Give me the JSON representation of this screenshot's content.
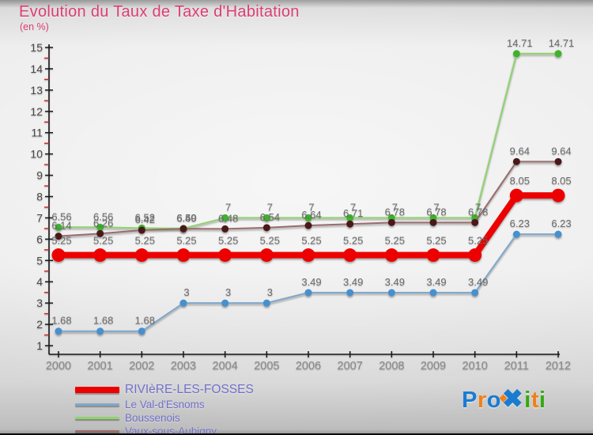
{
  "chart_data": {
    "type": "line",
    "title": "Evolution du Taux de Taxe d'Habitation",
    "subtitle": "(en %)",
    "x": [
      2000,
      2001,
      2002,
      2003,
      2004,
      2005,
      2006,
      2007,
      2008,
      2009,
      2010,
      2011,
      2012
    ],
    "xlabel": "",
    "ylabel": "",
    "ylim": [
      1,
      15
    ],
    "y_major_step": 1,
    "y_minor_step": 0.5,
    "grid": false,
    "legend_position": "bottom-left",
    "series": [
      {
        "name": "RIVIèRE-LES-FOSSES",
        "color": "#ec0000",
        "marker_color": "#ec0000",
        "line_width": 8,
        "marker_radius": 8.5,
        "label_offset": 14,
        "draw_order": 4,
        "values": [
          5.25,
          5.25,
          5.25,
          5.25,
          5.25,
          5.25,
          5.25,
          5.25,
          5.25,
          5.25,
          5.25,
          8.05,
          8.05
        ],
        "labels": [
          "5.25",
          "5.25",
          "5.25",
          "5.25",
          "5.25",
          "5.25",
          "5.25",
          "5.25",
          "5.25",
          "5.25",
          "5.25",
          "8.05",
          "8.05"
        ]
      },
      {
        "name": "Le Val-d'Esnoms",
        "color": "#7fa8cc",
        "marker_color": "#4690ce",
        "line_width": 2,
        "marker_radius": 4.5,
        "label_offset": 9,
        "draw_order": 1,
        "values": [
          1.68,
          1.68,
          1.68,
          3,
          3,
          3,
          3.49,
          3.49,
          3.49,
          3.49,
          3.49,
          6.23,
          6.23
        ],
        "labels": [
          "1.68",
          "1.68",
          "1.68",
          "3",
          "3",
          "3",
          "3.49",
          "3.49",
          "3.49",
          "3.49",
          "3.49",
          "6.23",
          "6.23"
        ]
      },
      {
        "name": "Boussenois",
        "color": "#8fd46e",
        "marker_color": "#3db32c",
        "line_width": 2,
        "marker_radius": 4.5,
        "label_offset": 9,
        "draw_order": 2,
        "values": [
          6.56,
          6.56,
          6.52,
          6.5,
          7,
          7,
          7,
          7,
          7,
          7,
          7,
          14.71,
          14.71
        ],
        "labels": [
          "6.56",
          "6.56",
          "6.52",
          "6.50",
          "7",
          "7",
          "7",
          "7",
          "7",
          "7",
          "7",
          "14.71",
          "14.71"
        ]
      },
      {
        "name": "Vaux-sous-Aubigny",
        "color": "#996c6c",
        "marker_color": "#4a1818",
        "line_width": 2,
        "marker_radius": 4.5,
        "label_offset": 9,
        "draw_order": 3,
        "values": [
          6.14,
          6.26,
          6.42,
          6.49,
          6.48,
          6.54,
          6.64,
          6.71,
          6.78,
          6.78,
          6.78,
          9.64,
          9.64
        ],
        "labels": [
          "6.14",
          "6.26",
          "6.42",
          "6.49",
          "6.48",
          "6.54",
          "6.64",
          "6.71",
          "6.78",
          "6.78",
          "6.78",
          "9.64",
          "9.64"
        ]
      }
    ],
    "colors": {
      "title": "#db3d72",
      "axis": "#1a1a1a",
      "minor_tick": "#cc2020",
      "y_tick_label": "#4a4a4a",
      "x_tick_label": "#8a8a8a",
      "value_label": "#6e6e6e"
    }
  },
  "legend": {
    "text_color": "#6f6fca"
  },
  "logo": {
    "text": "Proxiti",
    "dot_color": "#f08019",
    "letters": [
      {
        "ch": "P",
        "color": "#1a7cd0",
        "big": false
      },
      {
        "ch": "r",
        "color": "#f08019",
        "big": false
      },
      {
        "ch": "o",
        "color": "#1a7cd0",
        "big": false
      },
      {
        "ch": "✖",
        "color": "#1a7cd0",
        "big": true
      },
      {
        "ch": "i",
        "color": "#33a911",
        "big": false
      },
      {
        "ch": "t",
        "color": "#f08019",
        "big": false
      },
      {
        "ch": "i",
        "color": "#33a911",
        "big": false
      }
    ]
  }
}
